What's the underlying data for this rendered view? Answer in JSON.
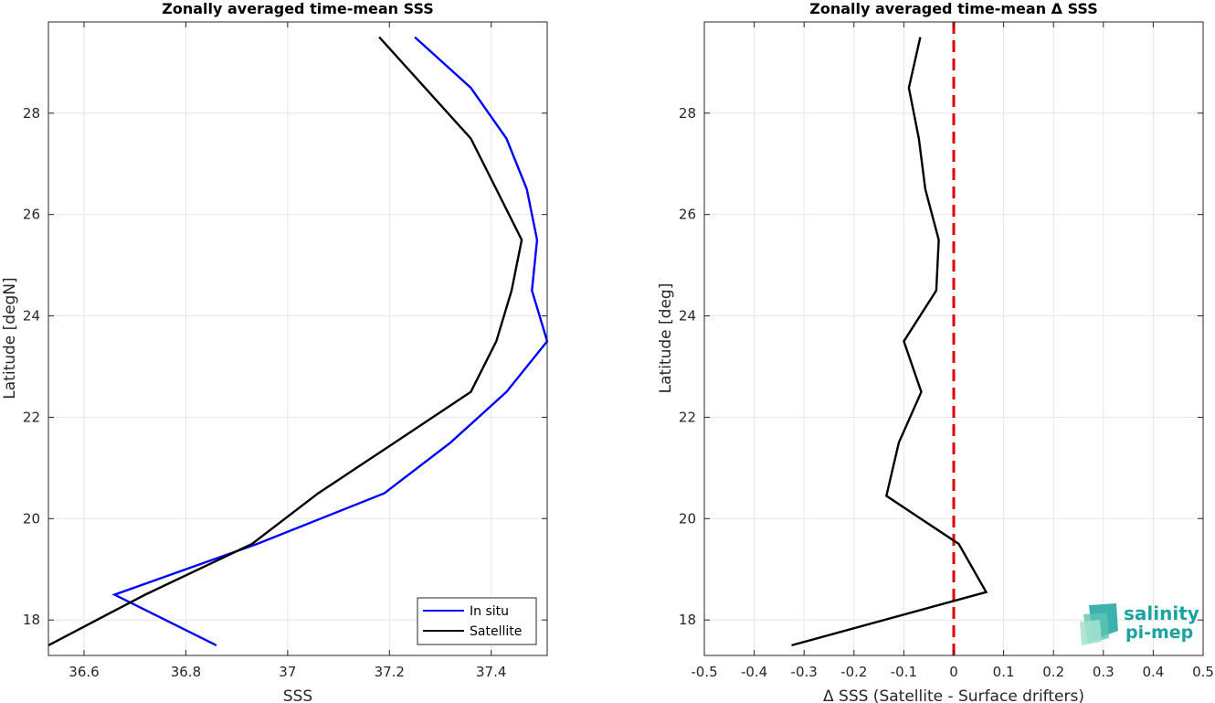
{
  "chart_data": [
    {
      "type": "line",
      "title": "Zonally averaged time-mean SSS",
      "xlabel": "SSS",
      "ylabel": "Latitude [degN]",
      "xlim": [
        36.53,
        37.51
      ],
      "ylim": [
        17.3,
        29.8
      ],
      "xticks": [
        "36.6",
        "36.8",
        "37",
        "37.2",
        "37.4"
      ],
      "xtick_values": [
        36.6,
        36.8,
        37.0,
        37.2,
        37.4
      ],
      "yticks": [
        "18",
        "20",
        "22",
        "24",
        "26",
        "28"
      ],
      "ytick_values": [
        18,
        20,
        22,
        24,
        26,
        28
      ],
      "grid": true,
      "legend": "bottom-right",
      "series": [
        {
          "name": "In situ",
          "color": "#0000ff",
          "points": [
            [
              36.86,
              17.5
            ],
            [
              36.66,
              18.5
            ],
            [
              36.94,
              19.5
            ],
            [
              37.19,
              20.5
            ],
            [
              37.32,
              21.5
            ],
            [
              37.43,
              22.5
            ],
            [
              37.51,
              23.5
            ],
            [
              37.48,
              24.5
            ],
            [
              37.49,
              25.5
            ],
            [
              37.47,
              26.5
            ],
            [
              37.43,
              27.5
            ],
            [
              37.36,
              28.5
            ],
            [
              37.25,
              29.5
            ]
          ]
        },
        {
          "name": "Satellite",
          "color": "#000000",
          "points": [
            [
              36.53,
              17.5
            ],
            [
              36.72,
              18.5
            ],
            [
              36.93,
              19.5
            ],
            [
              37.06,
              20.5
            ],
            [
              37.21,
              21.5
            ],
            [
              37.36,
              22.5
            ],
            [
              37.41,
              23.5
            ],
            [
              37.44,
              24.5
            ],
            [
              37.46,
              25.5
            ],
            [
              37.41,
              26.5
            ],
            [
              37.36,
              27.5
            ],
            [
              37.27,
              28.5
            ],
            [
              37.18,
              29.5
            ]
          ]
        }
      ]
    },
    {
      "type": "line",
      "title": "Zonally averaged time-mean Δ SSS",
      "xlabel": "Δ SSS (Satellite - Surface drifters)",
      "ylabel": "Latitude [deg]",
      "xlim": [
        -0.5,
        0.5
      ],
      "ylim": [
        17.3,
        29.8
      ],
      "xticks": [
        "-0.5",
        "-0.4",
        "-0.3",
        "-0.2",
        "-0.1",
        "0",
        "0.1",
        "0.2",
        "0.3",
        "0.4",
        "0.5"
      ],
      "xtick_values": [
        -0.5,
        -0.4,
        -0.3,
        -0.2,
        -0.1,
        0,
        0.1,
        0.2,
        0.3,
        0.4,
        0.5
      ],
      "yticks": [
        "18",
        "20",
        "22",
        "24",
        "26",
        "28"
      ],
      "ytick_values": [
        18,
        20,
        22,
        24,
        26,
        28
      ],
      "grid": true,
      "reference_line": {
        "x": 0,
        "color": "#e00000",
        "style": "dashed"
      },
      "series": [
        {
          "color": "#000000",
          "points": [
            [
              -0.325,
              17.5
            ],
            [
              0.065,
              18.55
            ],
            [
              0.01,
              19.5
            ],
            [
              -0.135,
              20.45
            ],
            [
              -0.11,
              21.5
            ],
            [
              -0.065,
              22.5
            ],
            [
              -0.1,
              23.5
            ],
            [
              -0.035,
              24.5
            ],
            [
              -0.03,
              25.5
            ],
            [
              -0.057,
              26.5
            ],
            [
              -0.07,
              27.5
            ],
            [
              -0.09,
              28.5
            ],
            [
              -0.067,
              29.5
            ]
          ]
        }
      ]
    }
  ],
  "logo": {
    "line1": "salinity",
    "line2": "pi-mep",
    "accent_color": "#1aa3a0"
  }
}
